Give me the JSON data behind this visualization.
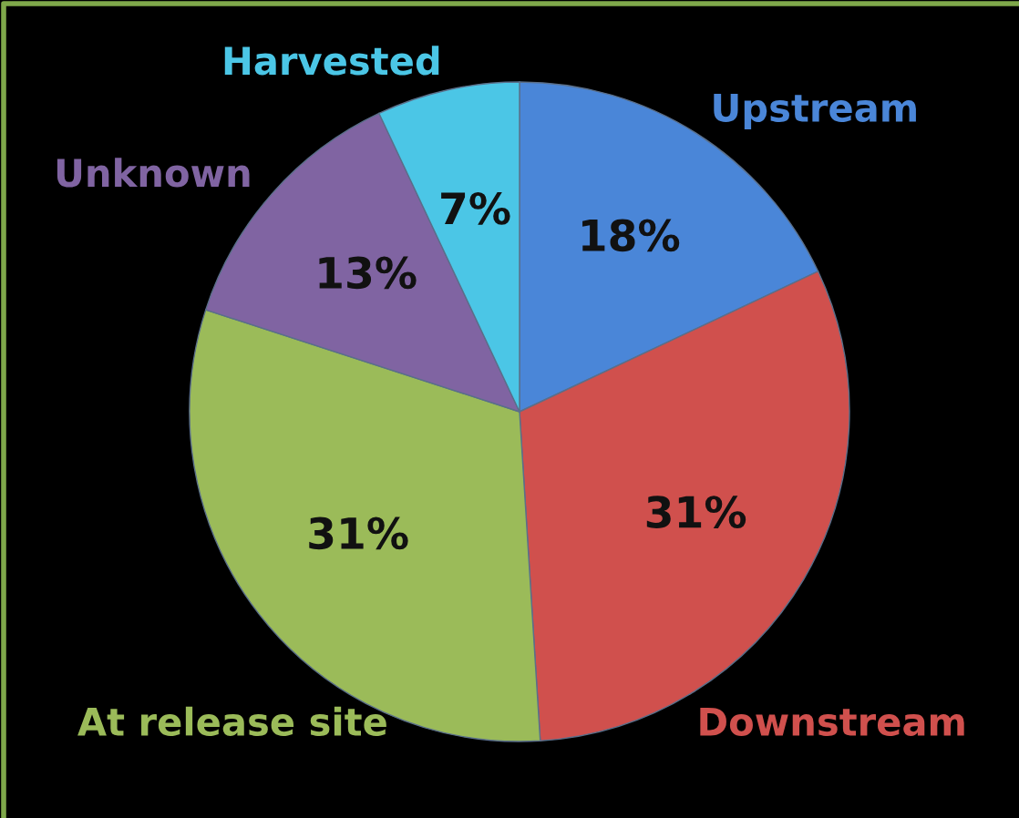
{
  "chart_data": {
    "type": "pie",
    "categories": [
      "Upstream",
      "Downstream",
      "At release site",
      "Unknown",
      "Harvested"
    ],
    "values": [
      18,
      31,
      31,
      13,
      7
    ],
    "colors": [
      "#4a86d8",
      "#d0504d",
      "#9bbb59",
      "#8064a2",
      "#4bc6e6"
    ],
    "value_labels": [
      "18%",
      "31%",
      "31%",
      "13%",
      "7%"
    ],
    "legend": false
  }
}
